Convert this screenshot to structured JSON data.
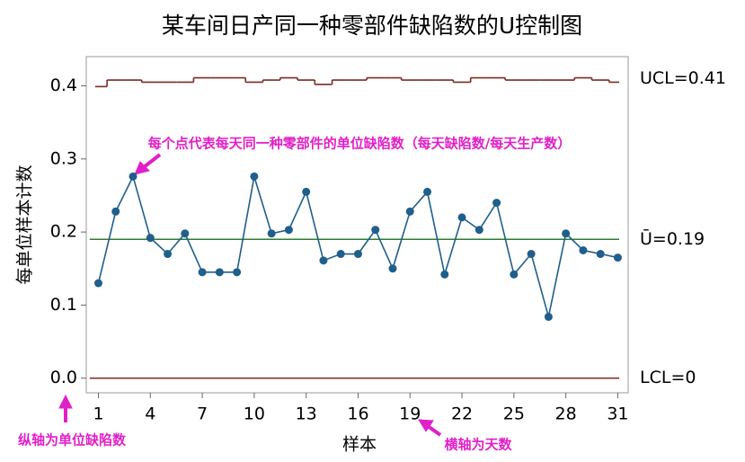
{
  "chart_data": {
    "type": "control",
    "title": "某车间日产同一种零部件缺陷数的U控制图",
    "xlabel": "样本",
    "ylabel": "每单位样本计数",
    "x": [
      1,
      2,
      3,
      4,
      5,
      6,
      7,
      8,
      9,
      10,
      11,
      12,
      13,
      14,
      15,
      16,
      17,
      18,
      19,
      20,
      21,
      22,
      23,
      24,
      25,
      26,
      27,
      28,
      29,
      30,
      31
    ],
    "values": [
      0.13,
      0.228,
      0.276,
      0.192,
      0.17,
      0.198,
      0.145,
      0.145,
      0.145,
      0.276,
      0.198,
      0.203,
      0.255,
      0.161,
      0.17,
      0.17,
      0.203,
      0.15,
      0.228,
      0.255,
      0.142,
      0.22,
      0.203,
      0.24,
      0.142,
      0.17,
      0.084,
      0.198,
      0.175,
      0.17,
      0.165
    ],
    "color": "#1f5f8b",
    "ucl": [
      0.399,
      0.408,
      0.408,
      0.405,
      0.405,
      0.405,
      0.411,
      0.411,
      0.411,
      0.405,
      0.408,
      0.411,
      0.408,
      0.402,
      0.408,
      0.408,
      0.411,
      0.411,
      0.408,
      0.408,
      0.408,
      0.405,
      0.411,
      0.411,
      0.408,
      0.408,
      0.408,
      0.408,
      0.411,
      0.408,
      0.405
    ],
    "ucl_color": "#7a2b22",
    "ucl_label": "UCL=0.41",
    "center": 0.19,
    "center_color": "#2e7d32",
    "center_label": "Ū=0.19",
    "lcl": 0,
    "lcl_color": "#7a2b22",
    "lcl_label": "LCL=0",
    "xlim": [
      0.3,
      31.6
    ],
    "ylim": [
      -0.02,
      0.44
    ],
    "xticks": [
      1,
      4,
      7,
      10,
      13,
      16,
      19,
      22,
      25,
      28,
      31
    ],
    "yticks": [
      {
        "value": 0,
        "label": "0.0"
      },
      0.1,
      0.2,
      0.3,
      0.4
    ],
    "annotations": [
      "每个点代表每天同一种零部件的单位缺陷数（每天缺陷数/每天生产数）",
      "纵轴为单位缺陷数",
      "横轴为天数"
    ]
  }
}
